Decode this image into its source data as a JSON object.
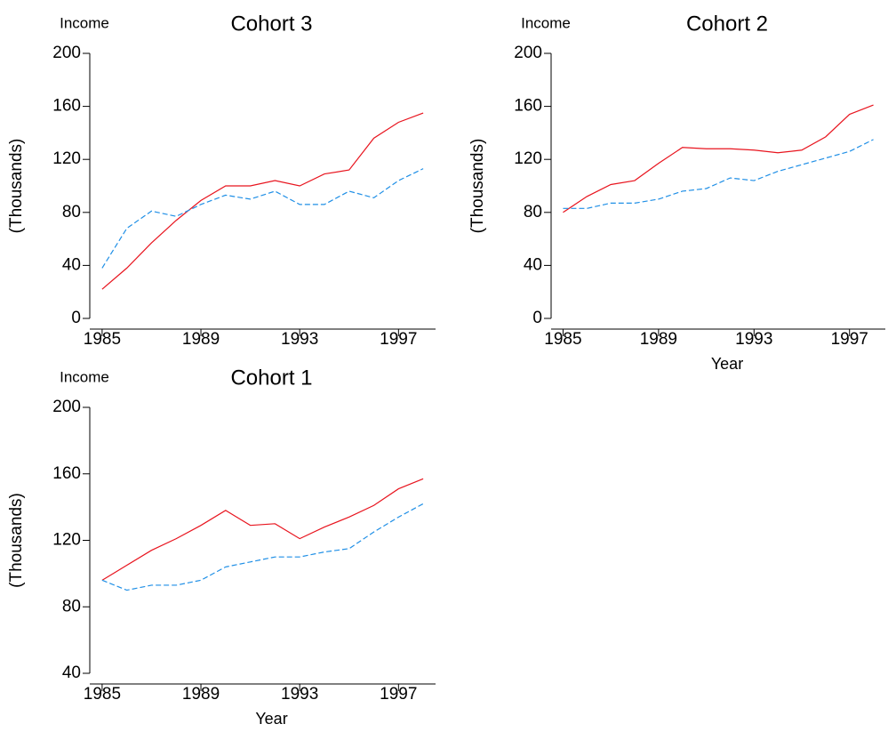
{
  "chart_data": [
    {
      "type": "line",
      "title": "Cohort 3",
      "y_label_top": "Income",
      "y_label": "(Thousands)",
      "x": [
        1985,
        1986,
        1987,
        1988,
        1989,
        1990,
        1991,
        1992,
        1993,
        1994,
        1995,
        1996,
        1997,
        1998
      ],
      "xlim": [
        1984.5,
        1998.5
      ],
      "xticks": [
        1985,
        1989,
        1993,
        1997
      ],
      "ylim": [
        0,
        200
      ],
      "yticks": [
        0,
        40,
        80,
        120,
        160,
        200
      ],
      "series": [
        {
          "color": "#e8141e",
          "style": "solid",
          "values": [
            22,
            38,
            57,
            74,
            89,
            100,
            100,
            104,
            100,
            109,
            112,
            136,
            148,
            155
          ]
        },
        {
          "color": "#1f8fe6",
          "style": "dashed",
          "values": [
            38,
            68,
            81,
            77,
            86,
            93,
            90,
            96,
            86,
            86,
            96,
            91,
            104,
            113
          ]
        }
      ]
    },
    {
      "type": "line",
      "title": "Cohort 2",
      "y_label_top": "Income",
      "y_label": "(Thousands)",
      "x_label": "Year",
      "x": [
        1985,
        1986,
        1987,
        1988,
        1989,
        1990,
        1991,
        1992,
        1993,
        1994,
        1995,
        1996,
        1997,
        1998
      ],
      "xlim": [
        1984.5,
        1998.5
      ],
      "xticks": [
        1985,
        1989,
        1993,
        1997
      ],
      "ylim": [
        0,
        200
      ],
      "yticks": [
        0,
        40,
        80,
        120,
        160,
        200
      ],
      "series": [
        {
          "color": "#e8141e",
          "style": "solid",
          "values": [
            80,
            92,
            101,
            104,
            117,
            129,
            128,
            128,
            127,
            125,
            127,
            137,
            154,
            161
          ]
        },
        {
          "color": "#1f8fe6",
          "style": "dashed",
          "values": [
            83,
            83,
            87,
            87,
            90,
            96,
            98,
            106,
            104,
            111,
            116,
            121,
            126,
            135
          ]
        }
      ]
    },
    {
      "type": "line",
      "title": "Cohort 1",
      "y_label_top": "Income",
      "y_label": "(Thousands)",
      "x_label": "Year",
      "x": [
        1985,
        1986,
        1987,
        1988,
        1989,
        1990,
        1991,
        1992,
        1993,
        1994,
        1995,
        1996,
        1997,
        1998
      ],
      "xlim": [
        1984.5,
        1998.5
      ],
      "xticks": [
        1985,
        1989,
        1993,
        1997
      ],
      "ylim": [
        40,
        200
      ],
      "yticks": [
        40,
        80,
        120,
        160,
        200
      ],
      "series": [
        {
          "color": "#e8141e",
          "style": "solid",
          "values": [
            96,
            105,
            114,
            121,
            129,
            138,
            129,
            130,
            121,
            128,
            134,
            141,
            151,
            157
          ]
        },
        {
          "color": "#1f8fe6",
          "style": "dashed",
          "values": [
            96,
            90,
            93,
            93,
            96,
            104,
            107,
            110,
            110,
            113,
            115,
            125,
            134,
            142
          ]
        }
      ]
    }
  ]
}
